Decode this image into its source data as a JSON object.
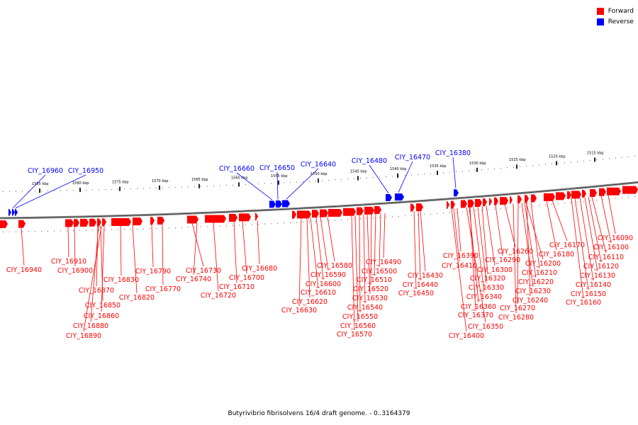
{
  "caption": "Butyrivibrio fibrisolvens 16/4 draft genome. - 0..3164379",
  "legend": [
    {
      "label": "Forward",
      "color": "#ff0000"
    },
    {
      "label": "Reverse",
      "color": "#0000ff"
    }
  ],
  "colors": {
    "forward": "#ff0000",
    "reverse": "#0000ff",
    "backbone": "#808080"
  },
  "ruler_labels": [
    "1585 kbp",
    "1580 kbp",
    "1575 kbp",
    "1570 kbp",
    "1565 kbp",
    "1560 kbp",
    "1555 kbp",
    "1550 kbp",
    "1545 kbp",
    "1540 kbp",
    "1535 kbp",
    "1530 kbp",
    "1525 kbp",
    "1520 kbp",
    "1515 kbp"
  ],
  "reverse_genes": [
    "CIY_16960",
    "CIY_16950",
    "CIY_16660",
    "CIY_16650",
    "CIY_16640",
    "CIY_16480",
    "CIY_16470",
    "CIY_16380"
  ],
  "forward_genes": [
    "CIY_16940",
    "CIY_16910",
    "CIY_16900",
    "CIY_16870",
    "CIY_16850",
    "CIY_16860",
    "CIY_16880",
    "CIY_16890",
    "CIY_16830",
    "CIY_16820",
    "CIY_16790",
    "CIY_16770",
    "CIY_16730",
    "CIY_16740",
    "CIY_16720",
    "CIY_16710",
    "CIY_16700",
    "CIY_16680",
    "CIY_16580",
    "CIY_16590",
    "CIY_16600",
    "CIY_16610",
    "CIY_16620",
    "CIY_16630",
    "CIY_16490",
    "CIY_16500",
    "CIY_16510",
    "CIY_16520",
    "CIY_16530",
    "CIY_16540",
    "CIY_16550",
    "CIY_16560",
    "CIY_16570",
    "CIY_16430",
    "CIY_16440",
    "CIY_16450",
    "CIY_16390",
    "CIY_16410",
    "CIY_16260",
    "CIY_16290",
    "CIY_16300",
    "CIY_16320",
    "CIY_16330",
    "CIY_16340",
    "CIY_16360",
    "CIY_16370",
    "CIY_16350",
    "CIY_16400",
    "CIY_16200",
    "CIY_16210",
    "CIY_16220",
    "CIY_16230",
    "CIY_16240",
    "CIY_16270",
    "CIY_16280",
    "CIY_16180",
    "CIY_16170",
    "CIY_16090",
    "CIY_16100",
    "CIY_16110",
    "CIY_16120",
    "CIY_16130",
    "CIY_16140",
    "CIY_16150",
    "CIY_16160"
  ]
}
